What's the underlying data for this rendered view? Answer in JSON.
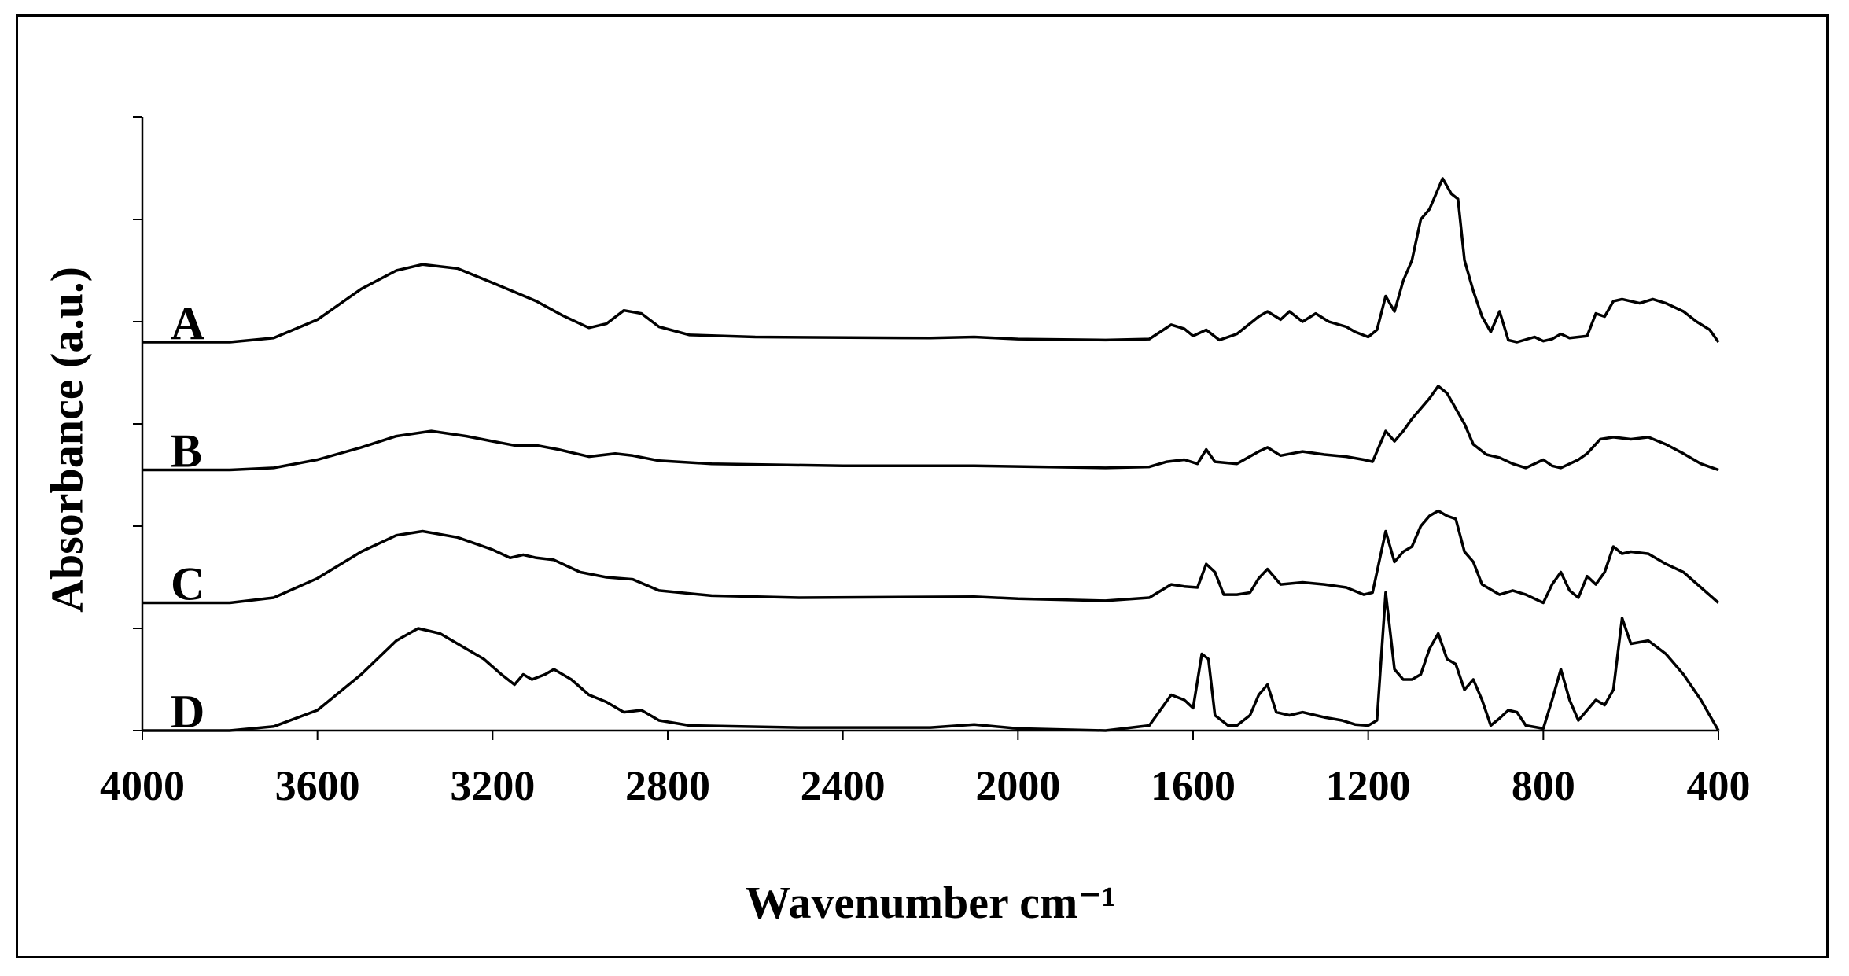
{
  "chart_data": {
    "type": "line",
    "title": "",
    "xlabel": "Wavenumber cm⁻¹",
    "ylabel": "Absorbance (a.u.)",
    "xlim": [
      4000,
      400
    ],
    "x_reversed": true,
    "xticks": [
      4000,
      3600,
      3200,
      2800,
      2400,
      2000,
      1600,
      1200,
      800,
      400
    ],
    "ylim": [
      0,
      6
    ],
    "yticks": [
      0,
      1,
      2,
      3,
      4,
      5,
      6
    ],
    "ytick_labels_shown": false,
    "grid": false,
    "legend": "none",
    "line_color": "#000000",
    "series": [
      {
        "name": "A",
        "offset": 3.8,
        "points": [
          [
            4000,
            0.0
          ],
          [
            3800,
            0.0
          ],
          [
            3700,
            0.04
          ],
          [
            3600,
            0.22
          ],
          [
            3500,
            0.52
          ],
          [
            3420,
            0.7
          ],
          [
            3360,
            0.76
          ],
          [
            3280,
            0.72
          ],
          [
            3200,
            0.58
          ],
          [
            3150,
            0.49
          ],
          [
            3100,
            0.4
          ],
          [
            3040,
            0.26
          ],
          [
            2980,
            0.14
          ],
          [
            2940,
            0.18
          ],
          [
            2900,
            0.31
          ],
          [
            2860,
            0.28
          ],
          [
            2820,
            0.15
          ],
          [
            2750,
            0.07
          ],
          [
            2600,
            0.05
          ],
          [
            2200,
            0.04
          ],
          [
            2100,
            0.05
          ],
          [
            2000,
            0.03
          ],
          [
            1800,
            0.02
          ],
          [
            1700,
            0.03
          ],
          [
            1650,
            0.17
          ],
          [
            1620,
            0.13
          ],
          [
            1600,
            0.06
          ],
          [
            1570,
            0.12
          ],
          [
            1540,
            0.02
          ],
          [
            1500,
            0.08
          ],
          [
            1450,
            0.25
          ],
          [
            1430,
            0.3
          ],
          [
            1400,
            0.22
          ],
          [
            1380,
            0.3
          ],
          [
            1350,
            0.2
          ],
          [
            1320,
            0.28
          ],
          [
            1290,
            0.2
          ],
          [
            1250,
            0.15
          ],
          [
            1230,
            0.1
          ],
          [
            1200,
            0.05
          ],
          [
            1180,
            0.12
          ],
          [
            1160,
            0.45
          ],
          [
            1140,
            0.3
          ],
          [
            1120,
            0.6
          ],
          [
            1100,
            0.8
          ],
          [
            1080,
            1.2
          ],
          [
            1060,
            1.3
          ],
          [
            1040,
            1.5
          ],
          [
            1030,
            1.6
          ],
          [
            1010,
            1.45
          ],
          [
            995,
            1.4
          ],
          [
            980,
            0.8
          ],
          [
            960,
            0.5
          ],
          [
            940,
            0.25
          ],
          [
            920,
            0.1
          ],
          [
            900,
            0.3
          ],
          [
            880,
            0.02
          ],
          [
            860,
            0.0
          ],
          [
            820,
            0.05
          ],
          [
            800,
            0.01
          ],
          [
            780,
            0.03
          ],
          [
            760,
            0.08
          ],
          [
            740,
            0.04
          ],
          [
            700,
            0.06
          ],
          [
            680,
            0.28
          ],
          [
            660,
            0.25
          ],
          [
            640,
            0.4
          ],
          [
            620,
            0.42
          ],
          [
            580,
            0.38
          ],
          [
            550,
            0.42
          ],
          [
            520,
            0.38
          ],
          [
            480,
            0.3
          ],
          [
            450,
            0.2
          ],
          [
            420,
            0.12
          ],
          [
            400,
            0.0
          ]
        ]
      },
      {
        "name": "B",
        "offset": 2.55,
        "points": [
          [
            4000,
            0.0
          ],
          [
            3800,
            0.0
          ],
          [
            3700,
            0.02
          ],
          [
            3600,
            0.1
          ],
          [
            3500,
            0.22
          ],
          [
            3420,
            0.33
          ],
          [
            3340,
            0.38
          ],
          [
            3260,
            0.33
          ],
          [
            3200,
            0.28
          ],
          [
            3150,
            0.24
          ],
          [
            3100,
            0.24
          ],
          [
            3050,
            0.2
          ],
          [
            2980,
            0.13
          ],
          [
            2920,
            0.16
          ],
          [
            2880,
            0.14
          ],
          [
            2820,
            0.09
          ],
          [
            2700,
            0.06
          ],
          [
            2400,
            0.04
          ],
          [
            2100,
            0.04
          ],
          [
            1800,
            0.02
          ],
          [
            1700,
            0.03
          ],
          [
            1660,
            0.08
          ],
          [
            1620,
            0.1
          ],
          [
            1590,
            0.06
          ],
          [
            1570,
            0.2
          ],
          [
            1550,
            0.08
          ],
          [
            1500,
            0.06
          ],
          [
            1450,
            0.18
          ],
          [
            1430,
            0.22
          ],
          [
            1400,
            0.14
          ],
          [
            1350,
            0.18
          ],
          [
            1300,
            0.15
          ],
          [
            1250,
            0.13
          ],
          [
            1210,
            0.1
          ],
          [
            1190,
            0.08
          ],
          [
            1160,
            0.38
          ],
          [
            1140,
            0.28
          ],
          [
            1120,
            0.38
          ],
          [
            1100,
            0.5
          ],
          [
            1080,
            0.6
          ],
          [
            1060,
            0.7
          ],
          [
            1040,
            0.82
          ],
          [
            1020,
            0.75
          ],
          [
            1000,
            0.6
          ],
          [
            980,
            0.45
          ],
          [
            960,
            0.25
          ],
          [
            930,
            0.15
          ],
          [
            900,
            0.12
          ],
          [
            870,
            0.06
          ],
          [
            840,
            0.02
          ],
          [
            800,
            0.1
          ],
          [
            780,
            0.04
          ],
          [
            760,
            0.02
          ],
          [
            720,
            0.1
          ],
          [
            700,
            0.16
          ],
          [
            670,
            0.3
          ],
          [
            640,
            0.32
          ],
          [
            600,
            0.3
          ],
          [
            560,
            0.32
          ],
          [
            520,
            0.25
          ],
          [
            480,
            0.16
          ],
          [
            440,
            0.06
          ],
          [
            400,
            0.0
          ]
        ]
      },
      {
        "name": "C",
        "offset": 1.25,
        "points": [
          [
            4000,
            0.0
          ],
          [
            3800,
            0.0
          ],
          [
            3700,
            0.05
          ],
          [
            3600,
            0.24
          ],
          [
            3500,
            0.5
          ],
          [
            3420,
            0.66
          ],
          [
            3360,
            0.7
          ],
          [
            3280,
            0.64
          ],
          [
            3200,
            0.52
          ],
          [
            3160,
            0.44
          ],
          [
            3130,
            0.47
          ],
          [
            3100,
            0.44
          ],
          [
            3060,
            0.42
          ],
          [
            3000,
            0.3
          ],
          [
            2940,
            0.25
          ],
          [
            2880,
            0.23
          ],
          [
            2820,
            0.12
          ],
          [
            2700,
            0.07
          ],
          [
            2500,
            0.05
          ],
          [
            2100,
            0.06
          ],
          [
            2000,
            0.04
          ],
          [
            1800,
            0.02
          ],
          [
            1700,
            0.05
          ],
          [
            1650,
            0.18
          ],
          [
            1620,
            0.16
          ],
          [
            1590,
            0.15
          ],
          [
            1570,
            0.38
          ],
          [
            1550,
            0.3
          ],
          [
            1530,
            0.08
          ],
          [
            1500,
            0.08
          ],
          [
            1470,
            0.1
          ],
          [
            1450,
            0.24
          ],
          [
            1430,
            0.33
          ],
          [
            1400,
            0.18
          ],
          [
            1350,
            0.2
          ],
          [
            1300,
            0.18
          ],
          [
            1250,
            0.15
          ],
          [
            1210,
            0.08
          ],
          [
            1190,
            0.1
          ],
          [
            1160,
            0.7
          ],
          [
            1140,
            0.4
          ],
          [
            1120,
            0.5
          ],
          [
            1100,
            0.55
          ],
          [
            1080,
            0.75
          ],
          [
            1060,
            0.85
          ],
          [
            1040,
            0.9
          ],
          [
            1020,
            0.85
          ],
          [
            1000,
            0.82
          ],
          [
            980,
            0.5
          ],
          [
            960,
            0.4
          ],
          [
            940,
            0.18
          ],
          [
            900,
            0.08
          ],
          [
            870,
            0.12
          ],
          [
            840,
            0.08
          ],
          [
            800,
            0.0
          ],
          [
            780,
            0.18
          ],
          [
            760,
            0.3
          ],
          [
            740,
            0.12
          ],
          [
            720,
            0.05
          ],
          [
            700,
            0.26
          ],
          [
            680,
            0.18
          ],
          [
            660,
            0.3
          ],
          [
            640,
            0.55
          ],
          [
            620,
            0.48
          ],
          [
            600,
            0.5
          ],
          [
            560,
            0.48
          ],
          [
            520,
            0.38
          ],
          [
            480,
            0.3
          ],
          [
            440,
            0.15
          ],
          [
            400,
            0.0
          ]
        ]
      },
      {
        "name": "D",
        "offset": 0.0,
        "points": [
          [
            4000,
            0.0
          ],
          [
            3800,
            0.0
          ],
          [
            3700,
            0.04
          ],
          [
            3600,
            0.2
          ],
          [
            3500,
            0.55
          ],
          [
            3420,
            0.88
          ],
          [
            3370,
            1.0
          ],
          [
            3320,
            0.95
          ],
          [
            3260,
            0.8
          ],
          [
            3220,
            0.7
          ],
          [
            3180,
            0.55
          ],
          [
            3150,
            0.45
          ],
          [
            3130,
            0.55
          ],
          [
            3110,
            0.5
          ],
          [
            3080,
            0.55
          ],
          [
            3060,
            0.6
          ],
          [
            3020,
            0.5
          ],
          [
            2980,
            0.35
          ],
          [
            2940,
            0.28
          ],
          [
            2900,
            0.18
          ],
          [
            2860,
            0.2
          ],
          [
            2820,
            0.1
          ],
          [
            2750,
            0.05
          ],
          [
            2500,
            0.03
          ],
          [
            2200,
            0.03
          ],
          [
            2100,
            0.06
          ],
          [
            2000,
            0.02
          ],
          [
            1800,
            0.0
          ],
          [
            1700,
            0.05
          ],
          [
            1650,
            0.35
          ],
          [
            1620,
            0.3
          ],
          [
            1600,
            0.22
          ],
          [
            1580,
            0.75
          ],
          [
            1565,
            0.7
          ],
          [
            1550,
            0.15
          ],
          [
            1520,
            0.05
          ],
          [
            1500,
            0.05
          ],
          [
            1470,
            0.15
          ],
          [
            1450,
            0.35
          ],
          [
            1430,
            0.45
          ],
          [
            1410,
            0.18
          ],
          [
            1380,
            0.15
          ],
          [
            1350,
            0.18
          ],
          [
            1320,
            0.15
          ],
          [
            1300,
            0.13
          ],
          [
            1260,
            0.1
          ],
          [
            1230,
            0.06
          ],
          [
            1200,
            0.05
          ],
          [
            1180,
            0.1
          ],
          [
            1160,
            1.35
          ],
          [
            1140,
            0.6
          ],
          [
            1120,
            0.5
          ],
          [
            1100,
            0.5
          ],
          [
            1080,
            0.55
          ],
          [
            1060,
            0.8
          ],
          [
            1040,
            0.95
          ],
          [
            1020,
            0.7
          ],
          [
            1000,
            0.65
          ],
          [
            980,
            0.4
          ],
          [
            960,
            0.5
          ],
          [
            940,
            0.3
          ],
          [
            920,
            0.05
          ],
          [
            900,
            0.12
          ],
          [
            880,
            0.2
          ],
          [
            860,
            0.18
          ],
          [
            840,
            0.05
          ],
          [
            800,
            0.02
          ],
          [
            780,
            0.3
          ],
          [
            760,
            0.6
          ],
          [
            740,
            0.3
          ],
          [
            720,
            0.1
          ],
          [
            700,
            0.2
          ],
          [
            680,
            0.3
          ],
          [
            660,
            0.25
          ],
          [
            640,
            0.4
          ],
          [
            620,
            1.1
          ],
          [
            600,
            0.85
          ],
          [
            560,
            0.88
          ],
          [
            520,
            0.75
          ],
          [
            480,
            0.55
          ],
          [
            440,
            0.3
          ],
          [
            400,
            0.0
          ]
        ]
      }
    ]
  }
}
